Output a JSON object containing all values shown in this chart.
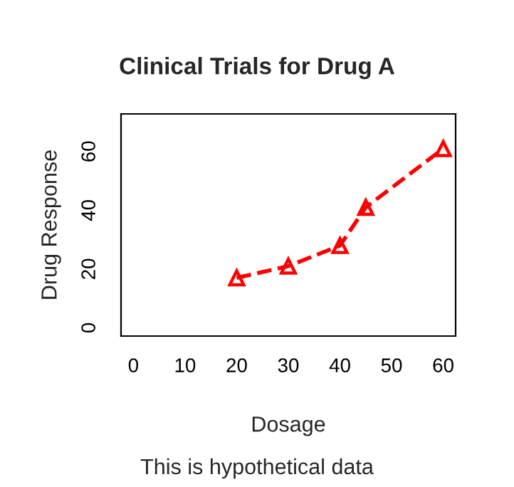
{
  "chart_data": {
    "type": "line",
    "title": "Clinical Trials for Drug A",
    "xlabel": "Dosage",
    "ylabel": "Drug Response",
    "annotations": [
      "This is hypothetical data"
    ],
    "x": [
      20,
      30,
      40,
      45,
      60
    ],
    "series": [
      {
        "color": "#ff0000",
        "values": [
          17,
          21,
          28,
          41,
          61
        ]
      }
    ],
    "xlim": [
      -2.4,
      62.4
    ],
    "ylim": [
      -2.8,
      72.8
    ],
    "xticks": [
      0,
      10,
      20,
      30,
      40,
      50,
      60
    ],
    "yticks": [
      0,
      20,
      40,
      60
    ],
    "marker": "triangle",
    "line_style": "dashed",
    "grid": false,
    "legend": false
  }
}
